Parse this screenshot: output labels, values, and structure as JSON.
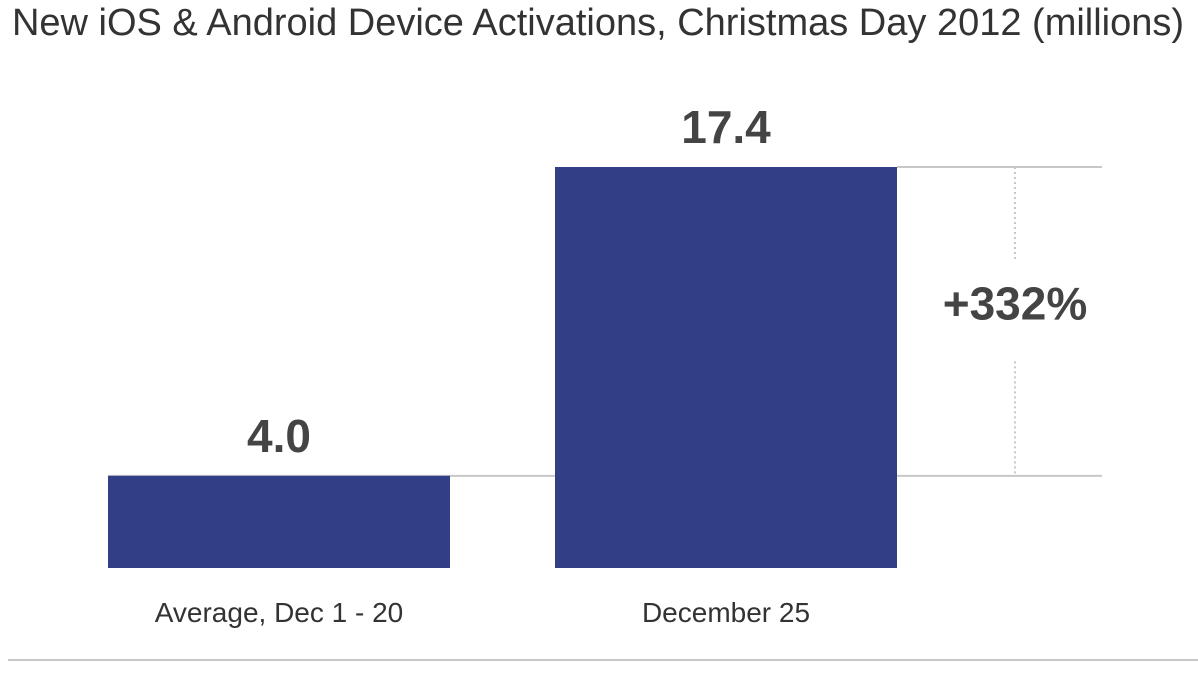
{
  "chart_data": {
    "type": "bar",
    "title": "New iOS & Android Device Activations, Christmas Day 2012 (millions)",
    "categories": [
      "Average, Dec 1 - 20",
      "December 25"
    ],
    "values": [
      4.0,
      17.4
    ],
    "value_labels": [
      "4.0",
      "17.4"
    ],
    "unit": "millions",
    "xlabel": "",
    "ylabel": "",
    "ylim": [
      0,
      17.4
    ],
    "grid": false,
    "annotation": {
      "label": "+332%",
      "from_value": 4.0,
      "to_value": 17.4
    },
    "bar_color": "#323e86",
    "reference_line_color": "#c8c8c8",
    "text_color": "#444444"
  }
}
